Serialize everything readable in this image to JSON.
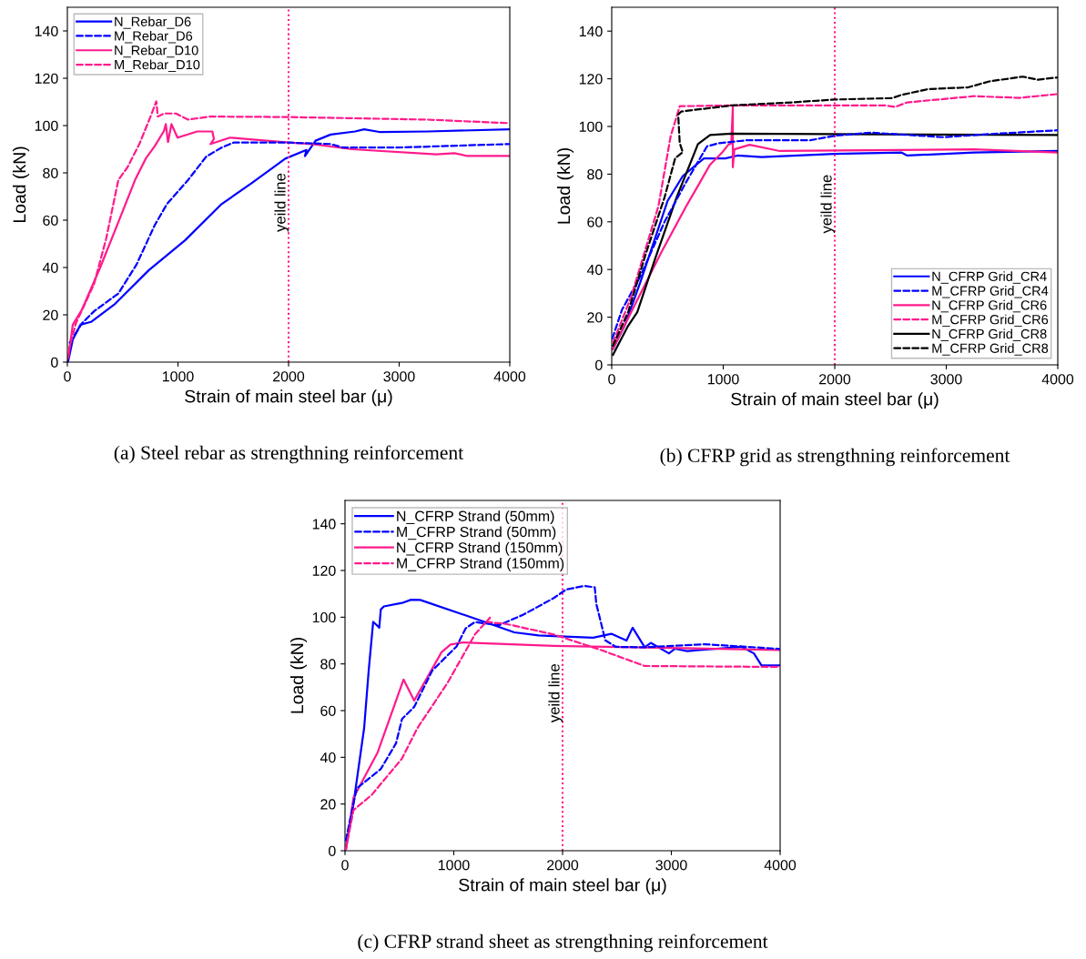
{
  "chart_data": [
    {
      "type": "line",
      "xlabel": "Strain of main steel bar (μ)",
      "ylabel": "Load (kN)",
      "xlim": [
        0,
        4000
      ],
      "ylim": [
        0,
        150
      ],
      "xticks": [
        0,
        1000,
        2000,
        3000,
        4000
      ],
      "yticks": [
        0,
        20,
        40,
        60,
        80,
        100,
        120,
        140
      ],
      "grid": false,
      "legend": "top left",
      "annotations": [
        "(a) Steel rebar as strengthning reinforcement"
      ],
      "ref_lines": [
        {
          "axis": "x",
          "value": 2000,
          "label": "yeild line",
          "color": "#ff1a8c",
          "line_style": "dotted"
        }
      ],
      "series": [
        {
          "name": "N_Rebar_D6",
          "color": "#0000ff",
          "line_style": "solid",
          "x": [
            8,
            49,
            118,
            214,
            433,
            735,
            1064,
            1394,
            1668,
            1970,
            2162,
            2148,
            2244,
            2381,
            2601,
            2683,
            2820,
            3259,
            4000
          ],
          "values": [
            0.5,
            9.5,
            15.8,
            17,
            24.7,
            38.8,
            51.5,
            66.8,
            75.7,
            86,
            89.7,
            87.1,
            93.6,
            96.2,
            97.5,
            98.4,
            97.3,
            97.5,
            98.4
          ]
        },
        {
          "name": "M_Rebar_D6",
          "color": "#0000ff",
          "line_style": "dashed",
          "x": [
            22,
            132,
            241,
            461,
            626,
            790,
            900,
            1092,
            1256,
            1394,
            1503,
            1997,
            2381,
            2491,
            2985,
            4000
          ],
          "values": [
            8.2,
            16.4,
            21.5,
            29,
            41.3,
            57.9,
            66.8,
            77,
            86.9,
            90.7,
            92.8,
            92.8,
            92.2,
            90.7,
            90.7,
            92.2
          ]
        },
        {
          "name": "N_Rebar_D10",
          "color": "#ff1a8c",
          "line_style": "solid",
          "x": [
            8,
            49,
            132,
            297,
            461,
            612,
            708,
            790,
            873,
            890,
            910,
            941,
            996,
            1174,
            1311,
            1325,
            1294,
            1470,
            1997,
            2217,
            2574,
            3336,
            3500,
            3611,
            4000
          ],
          "values": [
            1.7,
            15.8,
            22.2,
            40,
            59.2,
            77,
            86,
            91.3,
            97.7,
            100.6,
            93,
            100.6,
            94.9,
            97.5,
            97.5,
            94.3,
            92.2,
            94.9,
            92.8,
            92.2,
            90,
            87.8,
            88.3,
            87.2,
            87.2
          ]
        },
        {
          "name": "M_Rebar_D10",
          "color": "#ff1a8c",
          "line_style": "dashed",
          "x": [
            8,
            77,
            241,
            351,
            461,
            543,
            653,
            763,
            804,
            818,
            873,
            982,
            1092,
            1284,
            1997,
            3259,
            4000
          ],
          "values": [
            4.3,
            16.4,
            33,
            52.2,
            77,
            82.3,
            92.4,
            105.1,
            110.2,
            103.8,
            105.1,
            105.1,
            102.5,
            103.8,
            103.6,
            102.5,
            101
          ]
        }
      ]
    },
    {
      "type": "line",
      "xlabel": "Strain of main steel bar (μ)",
      "ylabel": "Load (kN)",
      "xlim": [
        0,
        4000
      ],
      "ylim": [
        0,
        150
      ],
      "xticks": [
        0,
        1000,
        2000,
        3000,
        4000
      ],
      "yticks": [
        0,
        20,
        40,
        60,
        80,
        100,
        120,
        140
      ],
      "grid": false,
      "legend": "lower right",
      "annotations": [
        "(b) CFRP grid as strengthning reinforcement"
      ],
      "ref_lines": [
        {
          "axis": "x",
          "value": 2000,
          "label": "yeild line",
          "color": "#ff1a8c",
          "line_style": "dotted"
        }
      ],
      "series": [
        {
          "name": "N_CFRP Grid_CR4",
          "color": "#0000ff",
          "line_style": "solid",
          "x": [
            11,
            120,
            256,
            501,
            637,
            746,
            827,
            1018,
            1127,
            1344,
            1997,
            2596,
            2650,
            3249,
            4000
          ],
          "values": [
            6.7,
            16.9,
            34.6,
            68.8,
            79.2,
            83.5,
            86.6,
            86.6,
            87.8,
            87.2,
            88.5,
            89.1,
            87.8,
            89.1,
            89.7
          ]
        },
        {
          "name": "M_CFRP Grid_CR4",
          "color": "#0000ff",
          "line_style": "dashed",
          "x": [
            5,
            93,
            256,
            474,
            665,
            855,
            964,
            1209,
            1508,
            1780,
            1997,
            2324,
            2977,
            3385,
            4000
          ],
          "values": [
            11,
            23.2,
            37.1,
            60,
            76.5,
            91.7,
            93,
            94.2,
            94.2,
            94.2,
            96.1,
            97.4,
            95.5,
            96.8,
            98.4
          ]
        },
        {
          "name": "N_CFRP Grid_CR6",
          "color": "#ff1a8c",
          "line_style": "solid",
          "x": [
            11,
            201,
            446,
            665,
            882,
            991,
            1045,
            1072,
            1086,
            1086,
            1100,
            1236,
            1508,
            3249,
            4000
          ],
          "values": [
            6.7,
            24.6,
            47.3,
            66.3,
            84,
            89.1,
            92.3,
            92.9,
            108.1,
            82.9,
            90.4,
            92.3,
            89.7,
            90.4,
            89.1
          ]
        },
        {
          "name": "M_CFRP Grid_CR6",
          "color": "#ff1a8c",
          "line_style": "dashed",
          "x": [
            11,
            174,
            419,
            528,
            610,
            1072,
            1997,
            2460,
            2542,
            2650,
            3249,
            3658,
            4000
          ],
          "values": [
            9.2,
            28.5,
            66.6,
            95.8,
            108.5,
            108.8,
            108.8,
            108.8,
            108.2,
            110.1,
            112.7,
            112,
            113.6
          ]
        },
        {
          "name": "N_CFRP Grid_CR8",
          "color": "#000000",
          "line_style": "solid",
          "x": [
            11,
            147,
            229,
            392,
            582,
            691,
            773,
            882,
            1072,
            4000
          ],
          "values": [
            4.2,
            16.4,
            22.1,
            44.9,
            70.3,
            83,
            92.6,
            96.4,
            97,
            96.4
          ]
        },
        {
          "name": "M_CFRP Grid_CR8",
          "color": "#000000",
          "line_style": "dashed",
          "x": [
            11,
            147,
            311,
            474,
            569,
            637,
            610,
            596,
            624,
            1072,
            1617,
            1997,
            2514,
            2596,
            2841,
            3195,
            3385,
            3685,
            3821,
            4000
          ],
          "values": [
            8,
            22.1,
            47.4,
            70.3,
            86.7,
            89.2,
            93,
            105,
            106.3,
            108.8,
            110.1,
            111.3,
            111.9,
            113.2,
            115.7,
            116.4,
            118.9,
            120.9,
            119.6,
            120.6
          ]
        }
      ]
    },
    {
      "type": "line",
      "xlabel": "Strain of main steel bar (μ)",
      "ylabel": "Load (kN)",
      "xlim": [
        0,
        4000
      ],
      "ylim": [
        0,
        150
      ],
      "xticks": [
        0,
        1000,
        2000,
        3000,
        4000
      ],
      "yticks": [
        0,
        20,
        40,
        60,
        80,
        100,
        120,
        140
      ],
      "grid": false,
      "legend": "top left",
      "annotations": [
        "(c) CFRP strand sheet as strengthning reinforcement"
      ],
      "ref_lines": [
        {
          "axis": "x",
          "value": 2000,
          "label": "yeild line",
          "color": "#ff1a8c",
          "line_style": "dotted"
        }
      ],
      "series": [
        {
          "name": "N_CFRP Strand (50mm)",
          "color": "#0000ff",
          "line_style": "solid",
          "x": [
            8,
            78,
            176,
            218,
            259,
            287,
            315,
            329,
            357,
            524,
            608,
            692,
            1277,
            1556,
            1780,
            1975,
            2281,
            2448,
            2588,
            2644,
            2755,
            2811,
            2978,
            3034,
            3146,
            3648,
            3759,
            3829,
            4000
          ],
          "values": [
            0.6,
            20.1,
            52.6,
            77.3,
            98,
            96.8,
            95.5,
            103.3,
            104.6,
            106.1,
            107.5,
            107.4,
            98.1,
            93.5,
            92.2,
            91.8,
            91.2,
            92.9,
            90,
            95.5,
            87.1,
            89,
            84.5,
            86.5,
            85.5,
            87.3,
            84.5,
            79.3,
            79.3
          ]
        },
        {
          "name": "M_CFRP Strand (50mm)",
          "color": "#0000ff",
          "line_style": "dashed",
          "x": [
            8,
            106,
            329,
            469,
            524,
            636,
            803,
            1026,
            1110,
            1194,
            1417,
            1640,
            1919,
            2031,
            2198,
            2296,
            2310,
            2393,
            2491,
            2755,
            3313,
            4000
          ],
          "values": [
            4.5,
            26.6,
            35,
            46,
            56.4,
            61.6,
            77.2,
            87.5,
            95.3,
            97.9,
            96.6,
            101.1,
            108.2,
            111.8,
            113.4,
            112.8,
            105.7,
            90.1,
            87.3,
            87.1,
            88.4,
            86.4
          ]
        },
        {
          "name": "N_CFRP Strand (150mm)",
          "color": "#ff1a8c",
          "line_style": "solid",
          "x": [
            8,
            78,
            301,
            538,
            636,
            887,
            970,
            1082,
            1919,
            4000
          ],
          "values": [
            0.6,
            22.7,
            42.2,
            73.3,
            64.3,
            85,
            88.3,
            89.2,
            87.7,
            86
          ]
        },
        {
          "name": "M_CFRP Strand (150mm)",
          "color": "#ff1a8c",
          "line_style": "dashed",
          "x": [
            8,
            78,
            245,
            524,
            664,
            943,
            1194,
            1333,
            1305,
            1472,
            1919,
            2338,
            2755,
            4000
          ],
          "values": [
            0.6,
            17.4,
            23.9,
            39.5,
            52.4,
            71.9,
            92.6,
            99.8,
            97.9,
            97.2,
            92.6,
            86.2,
            79.1,
            78.7
          ]
        }
      ]
    }
  ]
}
